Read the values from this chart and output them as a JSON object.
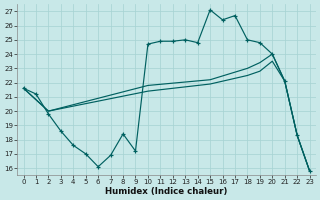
{
  "xlabel": "Humidex (Indice chaleur)",
  "bg_color": "#c8e8e8",
  "grid_color": "#a8d4d4",
  "line_color": "#006060",
  "xlim": [
    -0.5,
    23.5
  ],
  "ylim": [
    15.5,
    27.5
  ],
  "xticks": [
    0,
    1,
    2,
    3,
    4,
    5,
    6,
    7,
    8,
    9,
    10,
    11,
    12,
    13,
    14,
    15,
    16,
    17,
    18,
    19,
    20,
    21,
    22,
    23
  ],
  "yticks": [
    16,
    17,
    18,
    19,
    20,
    21,
    22,
    23,
    24,
    25,
    26,
    27
  ],
  "curve1_x": [
    0,
    1,
    2,
    3,
    4,
    5,
    6,
    7,
    8,
    9,
    10,
    11,
    12,
    13,
    14,
    15,
    16,
    17,
    18,
    19,
    20,
    21,
    22,
    23
  ],
  "curve1_y": [
    21.6,
    21.2,
    19.8,
    18.6,
    17.6,
    17.0,
    16.1,
    16.9,
    18.4,
    17.2,
    24.7,
    24.9,
    24.9,
    25.0,
    24.8,
    27.1,
    26.4,
    26.7,
    25.0,
    24.8,
    24.0,
    22.1,
    18.3,
    15.8
  ],
  "curve2_x": [
    0,
    2,
    10,
    15,
    18,
    19,
    20,
    21,
    22,
    23
  ],
  "curve2_y": [
    21.6,
    20.0,
    21.8,
    22.2,
    23.0,
    23.4,
    24.0,
    22.1,
    18.3,
    15.8
  ],
  "curve3_x": [
    0,
    2,
    10,
    15,
    18,
    19,
    20,
    21,
    22,
    23
  ],
  "curve3_y": [
    21.6,
    20.0,
    21.4,
    21.9,
    22.5,
    22.8,
    23.5,
    22.1,
    18.3,
    15.8
  ]
}
